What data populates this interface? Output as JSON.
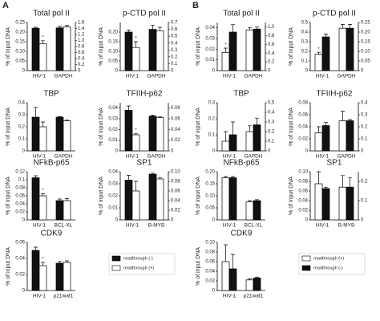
{
  "panel_labels": [
    "A",
    "B"
  ],
  "chart_data": [
    {
      "type": "bar",
      "title": "Total pol II",
      "ylabel": "% of input DNA",
      "categories": [
        "HIV-1",
        "GAPDH"
      ],
      "category_axis": [
        "y",
        "y2"
      ],
      "series": [
        {
          "name": "readthrough (-)",
          "color": "#111111",
          "values": [
            0.22,
            1.42
          ],
          "errors": [
            0.005,
            0.05
          ]
        },
        {
          "name": "readthrough (+)",
          "color": "#ffffff",
          "values": [
            0.14,
            1.45
          ],
          "errors": [
            0.015,
            0.05
          ]
        }
      ],
      "ylim": [
        0,
        0.25
      ],
      "yticks": [
        0,
        0.05,
        {
          "value": 0.1,
          "label": "0.10"
        },
        0.15,
        {
          "value": 0.2,
          "label": "0.20"
        },
        0.25
      ],
      "y2lim": [
        0,
        1.6
      ],
      "y2ticks": [
        0,
        0.2,
        0.4,
        0.6,
        0.8,
        {
          "value": 1,
          "label": "1.0"
        },
        1.2,
        1.4,
        1.6
      ],
      "annotation": {
        "text": "*",
        "category": "HIV-1",
        "series": "readthrough (+)"
      }
    },
    {
      "type": "bar",
      "title": "p-CTD pol II",
      "ylabel": "% of input DNA",
      "categories": [
        "HIV-1",
        "GAPDH"
      ],
      "category_axis": [
        "y",
        "y2"
      ],
      "series": [
        {
          "name": "readthrough (-)",
          "color": "#111111",
          "values": [
            0.2,
            0.6
          ],
          "errors": [
            0.01,
            0.06
          ]
        },
        {
          "name": "readthrough (+)",
          "color": "#ffffff",
          "values": [
            0.12,
            0.58
          ],
          "errors": [
            0.03,
            0.05
          ]
        }
      ],
      "ylim": [
        0,
        0.25
      ],
      "yticks": [
        0,
        0.05,
        {
          "value": 0.1,
          "label": "0.10"
        },
        0.15,
        {
          "value": 0.2,
          "label": "0.20"
        }
      ],
      "y2lim": [
        0,
        0.7
      ],
      "y2ticks": [
        0,
        0.1,
        0.2,
        0.3,
        0.4,
        0.5,
        0.6,
        0.7
      ],
      "annotation": {
        "text": "*",
        "category": "HIV-1",
        "series": "readthrough (+)"
      }
    },
    {
      "type": "bar",
      "title": "TBP",
      "ylabel": "% of input DNA",
      "categories": [
        "HIV-1",
        "GAPDH"
      ],
      "category_axis": [
        "y",
        "y"
      ],
      "series": [
        {
          "name": "readthrough (-)",
          "color": "#111111",
          "values": [
            0.28,
            0.28
          ],
          "errors": [
            0.08,
            0.005
          ]
        },
        {
          "name": "readthrough (+)",
          "color": "#ffffff",
          "values": [
            0.2,
            0.25
          ],
          "errors": [
            0.04,
            0.005
          ]
        }
      ],
      "ylim": [
        0,
        0.4
      ],
      "yticks": [
        0,
        0.1,
        0.2,
        0.3,
        0.4
      ]
    },
    {
      "type": "bar",
      "title": "TFIIH-p62",
      "ylabel": "% of input DNA",
      "categories": [
        "HIV-1",
        "GAPDH"
      ],
      "category_axis": [
        "y",
        "y2"
      ],
      "series": [
        {
          "name": "readthrough (-)",
          "color": "#111111",
          "values": [
            0.038,
            0.065
          ],
          "errors": [
            0.004,
            0.002
          ]
        },
        {
          "name": "readthrough (+)",
          "color": "#ffffff",
          "values": [
            0.015,
            0.062
          ],
          "errors": [
            0.001,
            0.002
          ]
        }
      ],
      "ylim": [
        0,
        0.045
      ],
      "yticks": [
        0,
        0.01,
        0.02,
        0.03,
        0.04
      ],
      "y2lim": [
        0,
        0.09
      ],
      "y2ticks": [
        0,
        0.02,
        0.04,
        0.06,
        0.08
      ],
      "annotation": {
        "text": "*",
        "category": "HIV-1",
        "series": "readthrough (+)"
      }
    },
    {
      "type": "bar",
      "title": "NFkB-p65",
      "ylabel": "% of input DNA",
      "categories": [
        "HIV-1",
        "BCL-XL"
      ],
      "category_axis": [
        "y",
        "y"
      ],
      "series": [
        {
          "name": "readthrough (-)",
          "color": "#111111",
          "values": [
            0.105,
            0.048
          ],
          "errors": [
            0.005,
            0.004
          ]
        },
        {
          "name": "readthrough (+)",
          "color": "#ffffff",
          "values": [
            0.06,
            0.048
          ],
          "errors": [
            0.005,
            0.005
          ]
        }
      ],
      "ylim": [
        0,
        0.12
      ],
      "yticks": [
        0,
        0.02,
        0.04,
        0.06,
        0.08,
        0.1,
        0.12
      ],
      "annotation": {
        "text": "*",
        "category": "HIV-1",
        "series": "readthrough (+)"
      }
    },
    {
      "type": "bar",
      "title": "SP1",
      "ylabel": "% of input DNA",
      "categories": [
        "HIV-1",
        "B-MYB"
      ],
      "category_axis": [
        "y",
        "y2"
      ],
      "series": [
        {
          "name": "readthrough (-)",
          "color": "#111111",
          "values": [
            0.033,
            0.095
          ],
          "errors": [
            0.004,
            0.002
          ]
        },
        {
          "name": "readthrough (+)",
          "color": "#ffffff",
          "values": [
            0.024,
            0.085
          ],
          "errors": [
            0.008,
            0.003
          ]
        }
      ],
      "ylim": [
        0,
        0.04
      ],
      "yticks": [
        0,
        0.01,
        0.02,
        0.03,
        0.04
      ],
      "y2lim": [
        0,
        0.1
      ],
      "y2ticks": [
        0,
        0.02,
        0.04,
        0.06,
        0.08,
        {
          "value": 0.1,
          "label": "0.10"
        }
      ]
    },
    {
      "type": "bar",
      "title": "CDK9",
      "ylabel": "% of input DNA",
      "categories": [
        "HIV-1",
        "p21waf1"
      ],
      "category_axis": [
        "y",
        "y"
      ],
      "series": [
        {
          "name": "readthrough (-)",
          "color": "#111111",
          "values": [
            0.05,
            0.034
          ],
          "errors": [
            0.004,
            0.002
          ]
        },
        {
          "name": "readthrough (+)",
          "color": "#ffffff",
          "values": [
            0.031,
            0.035
          ],
          "errors": [
            0.004,
            0.002
          ]
        }
      ],
      "ylim": [
        0,
        0.06
      ],
      "yticks": [
        0,
        0.02,
        0.04,
        0.06
      ],
      "annotation": {
        "text": "*",
        "category": "HIV-1",
        "series": "readthrough (+)"
      }
    },
    {
      "type": "bar",
      "title": "Total pol II",
      "ylabel": "% of input DNA",
      "categories": [
        "HIV-1",
        "GAPDH"
      ],
      "category_axis": [
        "y",
        "y2"
      ],
      "series": [
        {
          "name": "readthrough (+)",
          "color": "#ffffff",
          "values": [
            0.017,
            0.93
          ],
          "errors": [
            0.004,
            0.05
          ]
        },
        {
          "name": "readthrough (-)",
          "color": "#111111",
          "values": [
            0.036,
            0.95
          ],
          "errors": [
            0.007,
            0.05
          ]
        }
      ],
      "ylim": [
        0,
        0.045
      ],
      "yticks": [
        0,
        0.01,
        0.02,
        0.03,
        0.04
      ],
      "y2lim": [
        0,
        1.1
      ],
      "y2ticks": [
        0,
        0.2,
        0.4,
        0.6,
        0.8,
        {
          "value": 1,
          "label": "1.0"
        }
      ],
      "annotation": {
        "text": "*",
        "category": "HIV-1",
        "series": "readthrough (+)"
      }
    },
    {
      "type": "bar",
      "title": "p-CTD pol II",
      "ylabel": "% of input DNA",
      "categories": [
        "HIV-1",
        "GAPDH"
      ],
      "category_axis": [
        "y",
        "y2"
      ],
      "series": [
        {
          "name": "readthrough (+)",
          "color": "#ffffff",
          "values": [
            0.17,
            0.22
          ],
          "errors": [
            0.02,
            0.02
          ]
        },
        {
          "name": "readthrough (-)",
          "color": "#111111",
          "values": [
            0.35,
            0.22
          ],
          "errors": [
            0.03,
            0.02
          ]
        }
      ],
      "ylim": [
        0,
        0.5
      ],
      "yticks": [
        0,
        0.1,
        0.2,
        0.3,
        0.4,
        0.5
      ],
      "y2lim": [
        0,
        0.25
      ],
      "y2ticks": [
        0,
        0.05,
        {
          "value": 0.1,
          "label": "0.10"
        },
        0.15,
        {
          "value": 0.2,
          "label": "0.20"
        },
        0.25
      ],
      "annotation": {
        "text": "*",
        "category": "HIV-1",
        "series": "readthrough (+)"
      }
    },
    {
      "type": "bar",
      "title": "TBP",
      "ylabel": "% of input DNA",
      "categories": [
        "HIV-1",
        "GAPDH"
      ],
      "category_axis": [
        "y",
        "y2"
      ],
      "series": [
        {
          "name": "readthrough (+)",
          "color": "#ffffff",
          "values": [
            0.06,
            0.2
          ],
          "errors": [
            0.06,
            0.06
          ]
        },
        {
          "name": "readthrough (-)",
          "color": "#111111",
          "values": [
            0.1,
            0.27
          ],
          "errors": [
            0.08,
            0.07
          ]
        }
      ],
      "ylim": [
        0,
        0.3
      ],
      "yticks": [
        0,
        0.1,
        0.2,
        0.3
      ],
      "y2lim": [
        0,
        0.5
      ],
      "y2ticks": [
        0,
        0.1,
        0.2,
        0.3,
        0.4,
        0.5
      ]
    },
    {
      "type": "bar",
      "title": "TFIIH-p62",
      "ylabel": "% of input DNA",
      "categories": [
        "HIV-1",
        "GAPDH"
      ],
      "category_axis": [
        "y",
        "y2"
      ],
      "series": [
        {
          "name": "readthrough (+)",
          "color": "#ffffff",
          "values": [
            0.03,
            0.25
          ],
          "errors": [
            0.01,
            0.08
          ]
        },
        {
          "name": "readthrough (-)",
          "color": "#111111",
          "values": [
            0.042,
            0.25
          ],
          "errors": [
            0.005,
            0.01
          ]
        }
      ],
      "ylim": [
        0,
        0.08
      ],
      "yticks": [
        0,
        0.02,
        0.04,
        0.06,
        0.08
      ],
      "y2lim": [
        0,
        0.4
      ],
      "y2ticks": [
        0,
        0.1,
        0.2,
        0.3,
        0.4
      ]
    },
    {
      "type": "bar",
      "title": "NFkB-p65",
      "ylabel": "% of input DNA",
      "categories": [
        "HIV-1",
        "BCL-XL"
      ],
      "category_axis": [
        "y",
        "y"
      ],
      "series": [
        {
          "name": "readthrough (+)",
          "color": "#ffffff",
          "values": [
            0.175,
            0.075
          ],
          "errors": [
            0.005,
            0.005
          ]
        },
        {
          "name": "readthrough (-)",
          "color": "#111111",
          "values": [
            0.175,
            0.08
          ],
          "errors": [
            0.005,
            0.004
          ]
        }
      ],
      "ylim": [
        0,
        0.2
      ],
      "yticks": [
        0,
        0.05,
        {
          "value": 0.1,
          "label": "0.10"
        },
        0.15,
        {
          "value": 0.2,
          "label": "0.20"
        }
      ]
    },
    {
      "type": "bar",
      "title": "SP1",
      "ylabel": "% of input DNA",
      "categories": [
        "HIV-1",
        "B-MYB"
      ],
      "category_axis": [
        "y",
        "y2"
      ],
      "series": [
        {
          "name": "readthrough (+)",
          "color": "#ffffff",
          "values": [
            0.075,
            0.17
          ],
          "errors": [
            0.025,
            0.06
          ]
        },
        {
          "name": "readthrough (-)",
          "color": "#111111",
          "values": [
            0.065,
            0.17
          ],
          "errors": [
            0.003,
            0.05
          ]
        }
      ],
      "ylim": [
        0,
        0.1
      ],
      "yticks": [
        0,
        0.02,
        0.04,
        0.06,
        0.08,
        {
          "value": 0.1,
          "label": "0.10"
        }
      ],
      "y2lim": [
        0,
        0.25
      ],
      "y2ticks": [
        0,
        0.1,
        0.2
      ]
    },
    {
      "type": "bar",
      "title": "CDK9",
      "ylabel": "% of input DNA",
      "categories": [
        "HIV-1",
        "p21waf1"
      ],
      "category_axis": [
        "y",
        "y"
      ],
      "series": [
        {
          "name": "readthrough (+)",
          "color": "#ffffff",
          "values": [
            0.06,
            0.022
          ],
          "errors": [
            0.035,
            0.002
          ]
        },
        {
          "name": "readthrough (-)",
          "color": "#111111",
          "values": [
            0.045,
            0.026
          ],
          "errors": [
            0.03,
            0.002
          ]
        }
      ],
      "ylim": [
        0,
        0.1
      ],
      "yticks": [
        0,
        0.02,
        0.04,
        0.06,
        0.08,
        {
          "value": 0.1,
          "label": "0.10"
        }
      ]
    }
  ]
}
